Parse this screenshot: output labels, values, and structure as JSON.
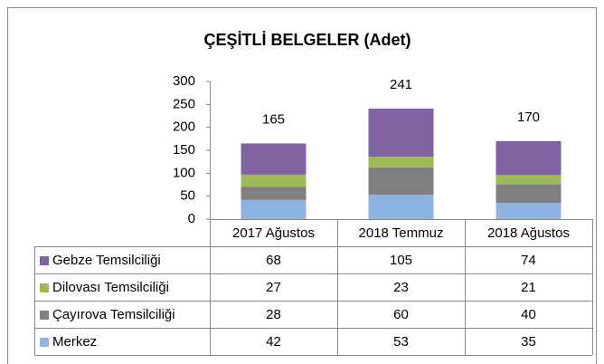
{
  "chart_data": {
    "type": "bar",
    "stacked": true,
    "title": "ÇEŞİTLİ BELGELER (Adet)",
    "categories": [
      "2017 Ağustos",
      "2018 Temmuz",
      "2018 Ağustos"
    ],
    "series": [
      {
        "name": "Gebze Temsilciliği",
        "color": "#8064a2",
        "values": [
          68,
          105,
          74
        ]
      },
      {
        "name": "Dilovası Temsilciliği",
        "color": "#9bbb59",
        "values": [
          27,
          23,
          21
        ]
      },
      {
        "name": "Çayırova Temsilciliği",
        "color": "#7f7f7f",
        "values": [
          28,
          60,
          40
        ]
      },
      {
        "name": "Merkez",
        "color": "#8db3e2",
        "values": [
          42,
          53,
          35
        ]
      }
    ],
    "totals": [
      165,
      241,
      170
    ],
    "ylim": [
      0,
      300
    ],
    "yticks": [
      0,
      50,
      100,
      150,
      200,
      250,
      300
    ]
  }
}
